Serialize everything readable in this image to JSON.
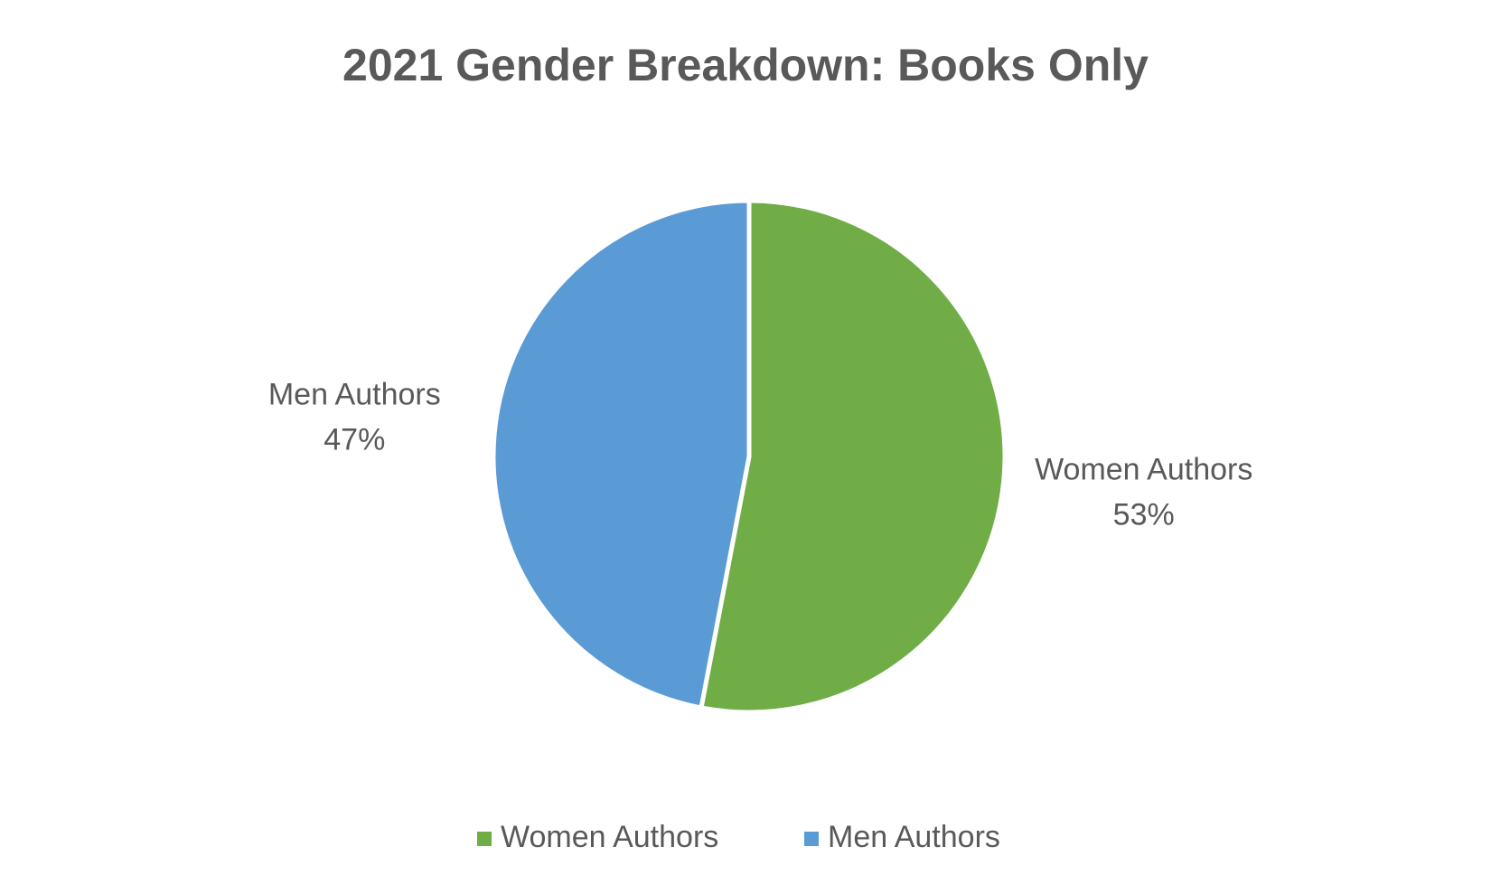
{
  "chart_data": {
    "type": "pie",
    "title": "2021 Gender Breakdown: Books Only",
    "categories": [
      "Women Authors",
      "Men Authors"
    ],
    "values": [
      53,
      47
    ],
    "value_labels": [
      "53%",
      "47%"
    ],
    "colors": [
      "#70ad47",
      "#5b9bd5"
    ],
    "legend": "bottom"
  }
}
